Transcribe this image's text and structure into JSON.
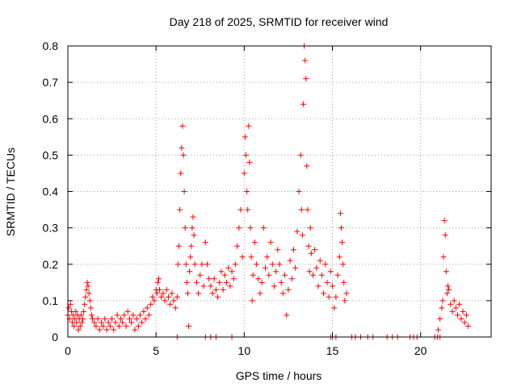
{
  "chart_data": {
    "type": "scatter",
    "title": "Day 218 of 2025, SRMTID for receiver wind",
    "xlabel": "GPS time / hours",
    "ylabel": "SRMTID / TECUs",
    "xlim": [
      0,
      24
    ],
    "ylim": [
      0,
      0.8
    ],
    "xticks": [
      0,
      5,
      10,
      15,
      20
    ],
    "xtick_labels": [
      "0",
      "5",
      "10",
      "15",
      "20"
    ],
    "yticks": [
      0,
      0.1,
      0.2,
      0.3,
      0.4,
      0.5,
      0.6,
      0.7,
      0.8
    ],
    "ytick_labels": [
      "0",
      "0.1",
      "0.2",
      "0.3",
      "0.4",
      "0.5",
      "0.6",
      "0.7",
      "0.8"
    ],
    "grid": true,
    "marker": "+",
    "color": "#ff0000",
    "series": [
      {
        "name": "SRMTID",
        "points": [
          [
            0.0,
            0.06
          ],
          [
            0.05,
            0.08
          ],
          [
            0.1,
            0.05
          ],
          [
            0.15,
            0.09
          ],
          [
            0.2,
            0.07
          ],
          [
            0.25,
            0.04
          ],
          [
            0.3,
            0.06
          ],
          [
            0.35,
            0.03
          ],
          [
            0.4,
            0.05
          ],
          [
            0.45,
            0.07
          ],
          [
            0.5,
            0.04
          ],
          [
            0.55,
            0.06
          ],
          [
            0.6,
            0.02
          ],
          [
            0.65,
            0.05
          ],
          [
            0.7,
            0.03
          ],
          [
            0.75,
            0.06
          ],
          [
            0.8,
            0.04
          ],
          [
            0.85,
            0.05
          ],
          [
            0.9,
            0.07
          ],
          [
            0.95,
            0.09
          ],
          [
            1.0,
            0.11
          ],
          [
            1.05,
            0.13
          ],
          [
            1.1,
            0.15
          ],
          [
            1.15,
            0.14
          ],
          [
            1.2,
            0.12
          ],
          [
            1.25,
            0.1
          ],
          [
            1.3,
            0.08
          ],
          [
            1.35,
            0.06
          ],
          [
            1.4,
            0.05
          ],
          [
            1.5,
            0.04
          ],
          [
            1.6,
            0.03
          ],
          [
            1.7,
            0.05
          ],
          [
            1.8,
            0.02
          ],
          [
            1.9,
            0.04
          ],
          [
            2.0,
            0.03
          ],
          [
            2.1,
            0.05
          ],
          [
            2.2,
            0.02
          ],
          [
            2.3,
            0.04
          ],
          [
            2.4,
            0.03
          ],
          [
            2.5,
            0.05
          ],
          [
            2.6,
            0.02
          ],
          [
            2.7,
            0.04
          ],
          [
            2.8,
            0.06
          ],
          [
            2.9,
            0.03
          ],
          [
            3.0,
            0.05
          ],
          [
            3.1,
            0.04
          ],
          [
            3.2,
            0.06
          ],
          [
            3.3,
            0.03
          ],
          [
            3.4,
            0.07
          ],
          [
            3.5,
            0.05
          ],
          [
            3.6,
            0.04
          ],
          [
            3.7,
            0.06
          ],
          [
            3.8,
            0.02
          ],
          [
            3.9,
            0.05
          ],
          [
            4.0,
            0.03
          ],
          [
            4.1,
            0.06
          ],
          [
            4.2,
            0.04
          ],
          [
            4.3,
            0.07
          ],
          [
            4.4,
            0.05
          ],
          [
            4.5,
            0.08
          ],
          [
            4.6,
            0.06
          ],
          [
            4.7,
            0.09
          ],
          [
            4.8,
            0.11
          ],
          [
            4.9,
            0.1
          ],
          [
            5.0,
            0.13
          ],
          [
            5.05,
            0.12
          ],
          [
            5.1,
            0.15
          ],
          [
            5.15,
            0.16
          ],
          [
            5.2,
            0.13
          ],
          [
            5.3,
            0.11
          ],
          [
            5.4,
            0.12
          ],
          [
            5.5,
            0.1
          ],
          [
            5.6,
            0.13
          ],
          [
            5.7,
            0.11
          ],
          [
            5.8,
            0.09
          ],
          [
            5.9,
            0.12
          ],
          [
            6.0,
            0.1
          ],
          [
            6.1,
            0.08
          ],
          [
            6.2,
            0.11
          ],
          [
            6.25,
            0.2
          ],
          [
            6.3,
            0.25
          ],
          [
            6.35,
            0.35
          ],
          [
            6.4,
            0.45
          ],
          [
            6.45,
            0.52
          ],
          [
            6.5,
            0.58
          ],
          [
            6.55,
            0.5
          ],
          [
            6.6,
            0.4
          ],
          [
            6.65,
            0.3
          ],
          [
            6.7,
            0.2
          ],
          [
            6.75,
            0.15
          ],
          [
            6.8,
            0.12
          ],
          [
            6.85,
            0.03
          ],
          [
            6.9,
            0.18
          ],
          [
            6.95,
            0.22
          ],
          [
            7.0,
            0.25
          ],
          [
            7.05,
            0.3
          ],
          [
            7.1,
            0.33
          ],
          [
            7.15,
            0.28
          ],
          [
            7.2,
            0.2
          ],
          [
            7.3,
            0.15
          ],
          [
            7.4,
            0.12
          ],
          [
            7.5,
            0.17
          ],
          [
            7.6,
            0.2
          ],
          [
            7.7,
            0.14
          ],
          [
            7.8,
            0.26
          ],
          [
            7.9,
            0.2
          ],
          [
            8.0,
            0.16
          ],
          [
            8.1,
            0.14
          ],
          [
            8.2,
            0.12
          ],
          [
            8.3,
            0.16
          ],
          [
            8.4,
            0.13
          ],
          [
            8.5,
            0.11
          ],
          [
            8.6,
            0.15
          ],
          [
            8.7,
            0.18
          ],
          [
            8.8,
            0.13
          ],
          [
            8.9,
            0.17
          ],
          [
            9.0,
            0.15
          ],
          [
            9.1,
            0.19
          ],
          [
            9.2,
            0.14
          ],
          [
            9.3,
            0.18
          ],
          [
            9.4,
            0.16
          ],
          [
            9.5,
            0.2
          ],
          [
            9.6,
            0.25
          ],
          [
            9.7,
            0.3
          ],
          [
            9.8,
            0.35
          ],
          [
            9.9,
            0.22
          ],
          [
            10.0,
            0.45
          ],
          [
            10.05,
            0.55
          ],
          [
            10.1,
            0.5
          ],
          [
            10.15,
            0.4
          ],
          [
            10.2,
            0.35
          ],
          [
            10.25,
            0.58
          ],
          [
            10.3,
            0.48
          ],
          [
            10.35,
            0.3
          ],
          [
            10.4,
            0.22
          ],
          [
            10.45,
            0.1
          ],
          [
            10.5,
            0.17
          ],
          [
            10.6,
            0.26
          ],
          [
            10.7,
            0.2
          ],
          [
            10.8,
            0.16
          ],
          [
            10.9,
            0.12
          ],
          [
            11.0,
            0.15
          ],
          [
            11.1,
            0.3
          ],
          [
            11.2,
            0.19
          ],
          [
            11.3,
            0.22
          ],
          [
            11.4,
            0.17
          ],
          [
            11.5,
            0.26
          ],
          [
            11.6,
            0.2
          ],
          [
            11.7,
            0.14
          ],
          [
            11.8,
            0.18
          ],
          [
            11.9,
            0.24
          ],
          [
            12.0,
            0.2
          ],
          [
            12.1,
            0.15
          ],
          [
            12.2,
            0.12
          ],
          [
            12.3,
            0.17
          ],
          [
            12.4,
            0.06
          ],
          [
            12.5,
            0.13
          ],
          [
            12.6,
            0.21
          ],
          [
            12.7,
            0.16
          ],
          [
            12.8,
            0.24
          ],
          [
            12.9,
            0.19
          ],
          [
            13.0,
            0.29
          ],
          [
            13.1,
            0.4
          ],
          [
            13.2,
            0.5
          ],
          [
            13.25,
            0.35
          ],
          [
            13.3,
            0.28
          ],
          [
            13.35,
            0.64
          ],
          [
            13.4,
            0.8
          ],
          [
            13.45,
            0.76
          ],
          [
            13.5,
            0.71
          ],
          [
            13.55,
            0.47
          ],
          [
            13.6,
            0.35
          ],
          [
            13.65,
            0.25
          ],
          [
            13.7,
            0.18
          ],
          [
            13.75,
            0.3
          ],
          [
            13.8,
            0.23
          ],
          [
            13.9,
            0.17
          ],
          [
            14.0,
            0.24
          ],
          [
            14.1,
            0.19
          ],
          [
            14.2,
            0.14
          ],
          [
            14.3,
            0.21
          ],
          [
            14.4,
            0.17
          ],
          [
            14.5,
            0.12
          ],
          [
            14.6,
            0.2
          ],
          [
            14.7,
            0.15
          ],
          [
            14.8,
            0.11
          ],
          [
            14.9,
            0.18
          ],
          [
            15.0,
            0.14
          ],
          [
            15.1,
            0.08
          ],
          [
            15.2,
            0.11
          ],
          [
            15.3,
            0.17
          ],
          [
            15.4,
            0.22
          ],
          [
            15.45,
            0.34
          ],
          [
            15.5,
            0.3
          ],
          [
            15.55,
            0.26
          ],
          [
            15.6,
            0.2
          ],
          [
            15.65,
            0.15
          ],
          [
            15.7,
            0.1
          ],
          [
            15.8,
            0.12
          ],
          [
            6.2,
            0.0
          ],
          [
            7.8,
            0.0
          ],
          [
            8.1,
            0.0
          ],
          [
            8.4,
            0.0
          ],
          [
            9.3,
            0.0
          ],
          [
            14.9,
            0.0
          ],
          [
            15.0,
            0.0
          ],
          [
            15.2,
            0.0
          ],
          [
            16.1,
            0.0
          ],
          [
            16.3,
            0.0
          ],
          [
            16.6,
            0.0
          ],
          [
            17.0,
            0.0
          ],
          [
            17.3,
            0.0
          ],
          [
            18.1,
            0.0
          ],
          [
            18.4,
            0.0
          ],
          [
            18.7,
            0.0
          ],
          [
            19.4,
            0.0
          ],
          [
            19.6,
            0.0
          ],
          [
            19.8,
            0.0
          ],
          [
            20.8,
            0.0
          ],
          [
            20.95,
            0.0
          ],
          [
            21.1,
            0.0
          ],
          [
            21.0,
            0.02
          ],
          [
            21.1,
            0.05
          ],
          [
            21.2,
            0.08
          ],
          [
            21.25,
            0.1
          ],
          [
            21.3,
            0.22
          ],
          [
            21.35,
            0.32
          ],
          [
            21.4,
            0.28
          ],
          [
            21.45,
            0.18
          ],
          [
            21.5,
            0.12
          ],
          [
            21.55,
            0.14
          ],
          [
            21.6,
            0.13
          ],
          [
            21.7,
            0.09
          ],
          [
            21.8,
            0.07
          ],
          [
            21.9,
            0.1
          ],
          [
            22.0,
            0.08
          ],
          [
            22.1,
            0.06
          ],
          [
            22.2,
            0.09
          ],
          [
            22.3,
            0.05
          ],
          [
            22.4,
            0.07
          ],
          [
            22.5,
            0.04
          ],
          [
            22.6,
            0.06
          ],
          [
            22.7,
            0.03
          ]
        ]
      }
    ]
  }
}
